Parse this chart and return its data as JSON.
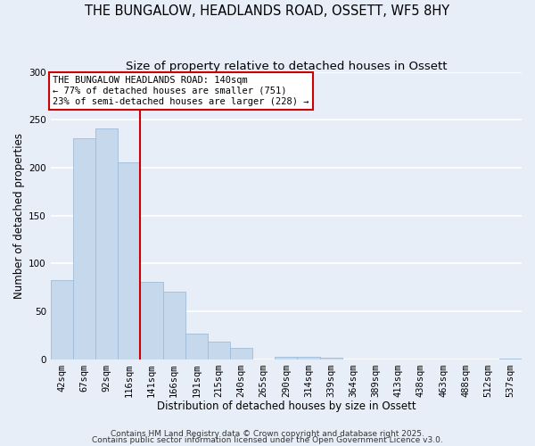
{
  "title": "THE BUNGALOW, HEADLANDS ROAD, OSSETT, WF5 8HY",
  "subtitle": "Size of property relative to detached houses in Ossett",
  "xlabel": "Distribution of detached houses by size in Ossett",
  "ylabel": "Number of detached properties",
  "categories": [
    "42sqm",
    "67sqm",
    "92sqm",
    "116sqm",
    "141sqm",
    "166sqm",
    "191sqm",
    "215sqm",
    "240sqm",
    "265sqm",
    "290sqm",
    "314sqm",
    "339sqm",
    "364sqm",
    "389sqm",
    "413sqm",
    "438sqm",
    "463sqm",
    "488sqm",
    "512sqm",
    "537sqm"
  ],
  "values": [
    83,
    231,
    241,
    206,
    81,
    71,
    27,
    19,
    12,
    0,
    3,
    3,
    2,
    0,
    0,
    0,
    0,
    0,
    0,
    0,
    1
  ],
  "bar_color": "#c6d9ec",
  "bar_edge_color": "#a0bcd8",
  "vline_color": "#cc0000",
  "annotation_text": "THE BUNGALOW HEADLANDS ROAD: 140sqm\n← 77% of detached houses are smaller (751)\n23% of semi-detached houses are larger (228) →",
  "annotation_box_facecolor": "#ffffff",
  "annotation_box_edgecolor": "#cc0000",
  "ylim": [
    0,
    300
  ],
  "yticks": [
    0,
    50,
    100,
    150,
    200,
    250,
    300
  ],
  "footer1": "Contains HM Land Registry data © Crown copyright and database right 2025.",
  "footer2": "Contains public sector information licensed under the Open Government Licence v3.0.",
  "background_color": "#e8eef8",
  "grid_color": "#ffffff",
  "title_fontsize": 10.5,
  "subtitle_fontsize": 9.5,
  "axis_label_fontsize": 8.5,
  "tick_fontsize": 7.5,
  "annotation_fontsize": 7.5,
  "footer_fontsize": 6.5
}
